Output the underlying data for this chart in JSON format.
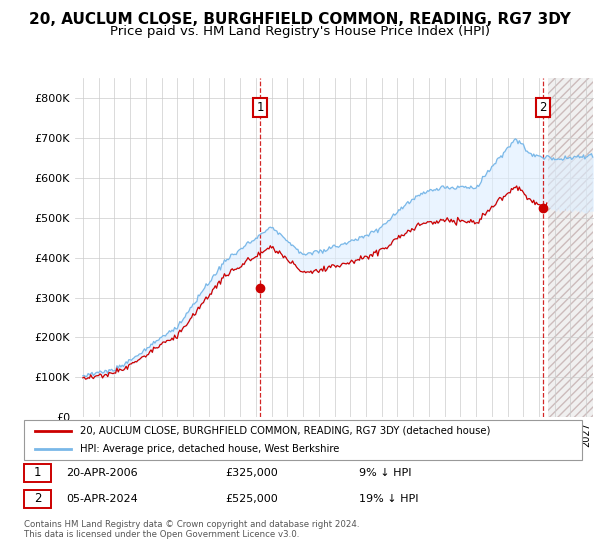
{
  "title": "20, AUCLUM CLOSE, BURGHFIELD COMMON, READING, RG7 3DY",
  "subtitle": "Price paid vs. HM Land Registry's House Price Index (HPI)",
  "ylim": [
    0,
    850000
  ],
  "yticks": [
    0,
    100000,
    200000,
    300000,
    400000,
    500000,
    600000,
    700000,
    800000
  ],
  "ytick_labels": [
    "£0",
    "£100K",
    "£200K",
    "£300K",
    "£400K",
    "£500K",
    "£600K",
    "£700K",
    "£800K"
  ],
  "hpi_color": "#7ab8e8",
  "price_color": "#cc0000",
  "fill_color": "#ddeeff",
  "sale1_date": 2006.27,
  "sale1_price": 325000,
  "sale2_date": 2024.27,
  "sale2_price": 525000,
  "legend_line1": "20, AUCLUM CLOSE, BURGHFIELD COMMON, READING, RG7 3DY (detached house)",
  "legend_line2": "HPI: Average price, detached house, West Berkshire",
  "annotation1_date": "20-APR-2006",
  "annotation1_price": "£325,000",
  "annotation1_pct": "9% ↓ HPI",
  "annotation2_date": "05-APR-2024",
  "annotation2_price": "£525,000",
  "annotation2_pct": "19% ↓ HPI",
  "footer": "Contains HM Land Registry data © Crown copyright and database right 2024.\nThis data is licensed under the Open Government Licence v3.0.",
  "title_fontsize": 11,
  "subtitle_fontsize": 9.5,
  "xmin": 1994.5,
  "xmax": 2027.5,
  "future_start": 2024.5
}
